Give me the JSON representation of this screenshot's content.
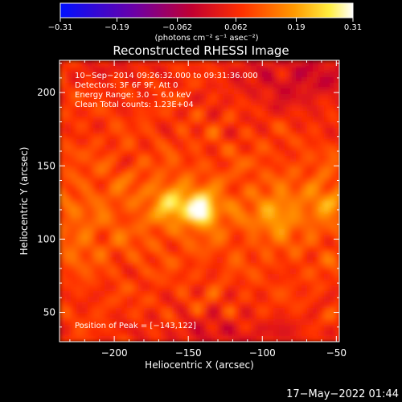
{
  "chart_data": {
    "type": "heatmap",
    "title": "Reconstructed RHESSI Image",
    "xlabel": "Heliocentric X (arcsec)",
    "ylabel": "Heliocentric Y (arcsec)",
    "xlim": [
      -237,
      -48
    ],
    "ylim": [
      30,
      222
    ],
    "xticks": [
      -200,
      -150,
      -100,
      -50
    ],
    "xtick_labels": [
      "−200",
      "−150",
      "−100",
      "−50"
    ],
    "yticks": [
      50,
      100,
      150,
      200
    ],
    "ytick_labels": [
      "50",
      "100",
      "150",
      "200"
    ],
    "colorbar": {
      "range": [
        -0.31,
        0.31
      ],
      "ticks": [
        -0.31,
        -0.19,
        -0.062,
        0.062,
        0.19,
        0.31
      ],
      "tick_labels": [
        "−0.31",
        "−0.19",
        "−0.062",
        "0.062",
        "0.19",
        "0.31"
      ],
      "units": "(photons cm⁻² s⁻¹ asec⁻²)",
      "colormap": "blue-purple-red-orange-yellow-white"
    },
    "peak": [
      -143,
      122
    ],
    "sources": [
      {
        "x": -143,
        "y": 122,
        "level": 0.31
      },
      {
        "x": -163,
        "y": 127,
        "level": 0.2
      },
      {
        "x": -92,
        "y": 118,
        "level": 0.17
      },
      {
        "x": -60,
        "y": 130,
        "level": 0.14
      },
      {
        "x": -225,
        "y": 95,
        "level": 0.12
      }
    ],
    "annotations": [
      "10−Sep−2014 09:26:32.000 to 09:31:36.000",
      "Detectors: 3F 6F 9F, Att 0",
      "Energy Range: 3.0 − 6.0 keV",
      "Clean    Total counts: 1.23E+04"
    ],
    "peak_label": "Position of Peak = [−143,122]",
    "timestamp": "17−May−2022 01:44"
  }
}
